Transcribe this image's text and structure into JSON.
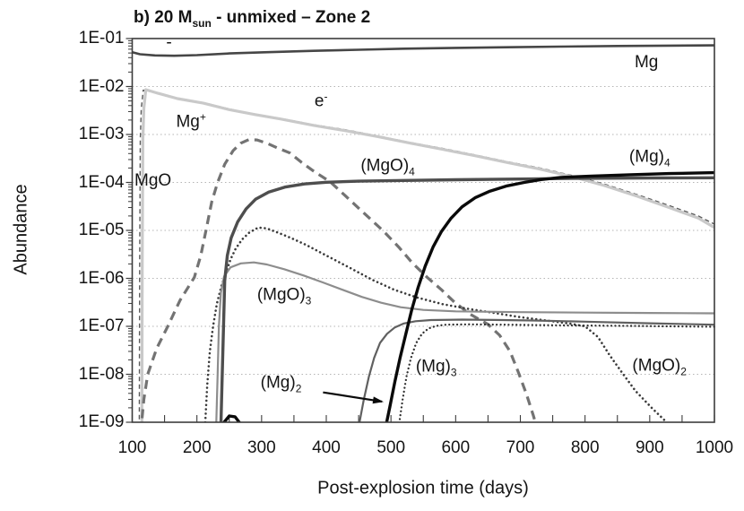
{
  "chart_data": {
    "type": "line",
    "title": "b) 20 Msun - unmixed – Zone 2",
    "title_parts": {
      "prefix": "b) 20 M",
      "subscript": "sun",
      "suffix": "  - unmixed – Zone 2"
    },
    "xlabel": "Post-explosion time (days)",
    "ylabel": "Abundance",
    "grid": "horizontal dotted lines at each decade",
    "legend_position": "inline curve labels",
    "axis_color": "#3c3c3c",
    "grid_color": "#b5b5b5",
    "x_axis": {
      "scale": "linear",
      "min": 100,
      "max": 1000,
      "major_ticks": [
        100,
        200,
        300,
        400,
        500,
        600,
        700,
        800,
        900,
        1000
      ],
      "minor_tick_step": 50
    },
    "y_axis": {
      "scale": "log",
      "min": 1e-09,
      "max": 0.1,
      "tick_labels": [
        "1E-01",
        "1E-02",
        "1E-03",
        "1E-04",
        "1E-05",
        "1E-06",
        "1E-07",
        "1E-08",
        "1E-09"
      ],
      "tick_exponents": [
        -1,
        -2,
        -3,
        -4,
        -5,
        -6,
        -7,
        -8,
        -9
      ]
    },
    "series": [
      {
        "id": "mg_plus",
        "name": "Mg+",
        "color": "#5a5a5a",
        "width": 1.4,
        "dash": "5 3.5",
        "label": {
          "text": "Mg",
          "sup": "+",
          "x": 191,
          "y": 0.0018
        },
        "points": [
          [
            111,
            8e-10
          ],
          [
            111.5,
            2e-06
          ],
          [
            112.5,
            0.0008
          ],
          [
            114,
            0.0035
          ],
          [
            117,
            0.0084
          ],
          [
            140,
            0.0073
          ],
          [
            170,
            0.0057
          ],
          [
            210,
            0.0046
          ],
          [
            250,
            0.0034
          ],
          [
            290,
            0.00265
          ],
          [
            330,
            0.00215
          ],
          [
            380,
            0.0016
          ],
          [
            430,
            0.00125
          ],
          [
            480,
            0.00093
          ],
          [
            530,
            0.00068
          ],
          [
            580,
            0.00051
          ],
          [
            630,
            0.000375
          ],
          [
            680,
            0.00027
          ],
          [
            730,
            0.0002
          ],
          [
            780,
            0.00014
          ],
          [
            830,
            9.2e-05
          ],
          [
            880,
            5.6e-05
          ],
          [
            930,
            3.3e-05
          ],
          [
            975,
            2e-05
          ],
          [
            1000,
            1.35e-05
          ]
        ]
      },
      {
        "id": "electron",
        "name": "e-",
        "color": "#c9c9c9",
        "width": 3.2,
        "dash": null,
        "label": {
          "text": "e",
          "sup": "-",
          "x": 392,
          "y": 0.005
        },
        "points": [
          [
            115,
            8e-10
          ],
          [
            115.5,
            2e-06
          ],
          [
            116.5,
            0.0008
          ],
          [
            118,
            0.0035
          ],
          [
            121,
            0.0086
          ],
          [
            140,
            0.0072
          ],
          [
            170,
            0.0056
          ],
          [
            210,
            0.0045
          ],
          [
            250,
            0.0033
          ],
          [
            290,
            0.0026
          ],
          [
            330,
            0.0021
          ],
          [
            380,
            0.00155
          ],
          [
            430,
            0.0012
          ],
          [
            480,
            0.0009
          ],
          [
            530,
            0.00066
          ],
          [
            580,
            0.00049
          ],
          [
            630,
            0.00036
          ],
          [
            680,
            0.00026
          ],
          [
            730,
            0.00019
          ],
          [
            780,
            0.000132
          ],
          [
            830,
            8.6e-05
          ],
          [
            880,
            5.2e-05
          ],
          [
            930,
            3e-05
          ],
          [
            975,
            1.8e-05
          ],
          [
            1000,
            1.15e-05
          ]
        ]
      },
      {
        "id": "mgo",
        "name": "MgO",
        "color": "#737373",
        "width": 3.2,
        "dash": "10 6.5",
        "label": {
          "text": "MgO",
          "x": 132,
          "y": 0.000105
        },
        "points": [
          [
            113,
            6e-10
          ],
          [
            118,
            3e-09
          ],
          [
            124,
            1e-08
          ],
          [
            138,
            3.5e-08
          ],
          [
            155,
            1e-07
          ],
          [
            174,
            3.5e-07
          ],
          [
            196,
            1.05e-06
          ],
          [
            206,
            3e-06
          ],
          [
            214,
            1e-05
          ],
          [
            223,
            4e-05
          ],
          [
            232,
            0.0001
          ],
          [
            243,
            0.00024
          ],
          [
            256,
            0.00046
          ],
          [
            268,
            0.00066
          ],
          [
            280,
            0.00078
          ],
          [
            293,
            0.00077
          ],
          [
            308,
            0.00066
          ],
          [
            325,
            0.00052
          ],
          [
            344,
            0.00041
          ],
          [
            362,
            0.00026
          ],
          [
            381,
            0.00017
          ],
          [
            406,
            0.000103
          ],
          [
            430,
            5.2e-05
          ],
          [
            458,
            2.3e-05
          ],
          [
            488,
            9.8e-06
          ],
          [
            512,
            4.5e-06
          ],
          [
            533,
            2.1e-06
          ],
          [
            556,
            1.05e-06
          ],
          [
            578,
            5.8e-07
          ],
          [
            598,
            3.2e-07
          ],
          [
            622,
            1.8e-07
          ],
          [
            650,
            1.1e-07
          ],
          [
            668,
            6.5e-08
          ],
          [
            684,
            3e-08
          ],
          [
            697,
            1.1e-08
          ],
          [
            709,
            4e-09
          ],
          [
            720,
            1.4e-09
          ],
          [
            728,
            6e-10
          ]
        ]
      },
      {
        "id": "mgo2",
        "name": "(MgO)2",
        "color": "#3a3a3a",
        "width": 2.6,
        "dash": "0.01 4.8",
        "linecap": "round",
        "label": {
          "text": "(MgO)",
          "sub": "2",
          "x": 915,
          "y": 1.45e-08
        },
        "points": [
          [
            213,
            1e-09
          ],
          [
            216,
            6e-09
          ],
          [
            220,
            3e-08
          ],
          [
            225,
            1e-07
          ],
          [
            231,
            3e-07
          ],
          [
            238,
            7e-07
          ],
          [
            245,
            1.3e-06
          ],
          [
            252,
            2.5e-06
          ],
          [
            260,
            4.2e-06
          ],
          [
            270,
            6.5e-06
          ],
          [
            281,
            9e-06
          ],
          [
            295,
            1.15e-05
          ],
          [
            308,
            1.1e-05
          ],
          [
            325,
            9e-06
          ],
          [
            345,
            7e-06
          ],
          [
            370,
            4.9e-06
          ],
          [
            400,
            3e-06
          ],
          [
            435,
            1.7e-06
          ],
          [
            470,
            9.5e-07
          ],
          [
            505,
            5.8e-07
          ],
          [
            540,
            4e-07
          ],
          [
            580,
            2.9e-07
          ],
          [
            620,
            2.3e-07
          ],
          [
            660,
            1.9e-07
          ],
          [
            700,
            1.55e-07
          ],
          [
            740,
            1.32e-07
          ],
          [
            775,
            1.15e-07
          ],
          [
            800,
            1e-07
          ],
          [
            820,
            6e-08
          ],
          [
            838,
            2.5e-08
          ],
          [
            858,
            1.05e-08
          ],
          [
            878,
            4.5e-09
          ],
          [
            903,
            2e-09
          ],
          [
            923,
            1.1e-09
          ],
          [
            933,
            6e-10
          ]
        ]
      },
      {
        "id": "mgo3",
        "name": "(MgO)3",
        "color": "#8d8d8d",
        "width": 2.2,
        "dash": null,
        "label": {
          "text": "(MgO)",
          "sub": "3",
          "x": 335,
          "y": 4.3e-07
        },
        "points": [
          [
            230,
            1e-09
          ],
          [
            232,
            1e-08
          ],
          [
            234,
            1e-07
          ],
          [
            237,
            5e-07
          ],
          [
            242,
            1.1e-06
          ],
          [
            252,
            1.7e-06
          ],
          [
            268,
            2.05e-06
          ],
          [
            288,
            2.15e-06
          ],
          [
            308,
            1.95e-06
          ],
          [
            335,
            1.55e-06
          ],
          [
            365,
            1.15e-06
          ],
          [
            395,
            8.2e-07
          ],
          [
            425,
            5.8e-07
          ],
          [
            455,
            4.1e-07
          ],
          [
            485,
            3.1e-07
          ],
          [
            515,
            2.5e-07
          ],
          [
            550,
            2.2e-07
          ],
          [
            600,
            2.05e-07
          ],
          [
            700,
            1.97e-07
          ],
          [
            800,
            1.93e-07
          ],
          [
            900,
            1.9e-07
          ],
          [
            1000,
            1.87e-07
          ]
        ]
      },
      {
        "id": "mgo4",
        "name": "(MgO)4",
        "color": "#4e4e4e",
        "width": 3.4,
        "dash": null,
        "label": {
          "text": "(MgO)",
          "sub": "4",
          "x": 495,
          "y": 0.00021
        },
        "points": [
          [
            237,
            8e-10
          ],
          [
            239,
            8e-09
          ],
          [
            241,
            9e-08
          ],
          [
            243,
            9e-07
          ],
          [
            247,
            3e-06
          ],
          [
            253,
            7e-06
          ],
          [
            263,
            1.5e-05
          ],
          [
            276,
            2.8e-05
          ],
          [
            291,
            4.5e-05
          ],
          [
            311,
            6.3e-05
          ],
          [
            336,
            8e-05
          ],
          [
            366,
            9.3e-05
          ],
          [
            400,
            0.000101
          ],
          [
            450,
            0.000106
          ],
          [
            520,
            0.00011
          ],
          [
            600,
            0.000114
          ],
          [
            700,
            0.000118
          ],
          [
            800,
            0.000122
          ],
          [
            900,
            0.000124
          ],
          [
            1000,
            0.000125
          ]
        ]
      },
      {
        "id": "mg2",
        "name": "(Mg)2",
        "color": "#606060",
        "width": 2.2,
        "dash": null,
        "label": {
          "text": "(Mg)",
          "sub": "2",
          "x": 330,
          "y": 6.5e-09
        },
        "points": [
          [
            450,
            8e-10
          ],
          [
            458,
            3e-09
          ],
          [
            466,
            9e-09
          ],
          [
            474,
            2.2e-08
          ],
          [
            483,
            4.5e-08
          ],
          [
            494,
            7e-08
          ],
          [
            506,
            9.5e-08
          ],
          [
            520,
            1.15e-07
          ],
          [
            538,
            1.28e-07
          ],
          [
            562,
            1.35e-07
          ],
          [
            610,
            1.38e-07
          ],
          [
            660,
            1.36e-07
          ],
          [
            720,
            1.32e-07
          ],
          [
            800,
            1.25e-07
          ],
          [
            900,
            1.16e-07
          ],
          [
            1000,
            1.08e-07
          ]
        ]
      },
      {
        "id": "mg3",
        "name": "(Mg)3",
        "color": "#2e2e2e",
        "width": 2.3,
        "dash": "0.01 4.4",
        "linecap": "round",
        "label": {
          "text": "(Mg)",
          "sub": "3",
          "x": 570,
          "y": 1.4e-08
        },
        "points": [
          [
            512,
            8e-10
          ],
          [
            518,
            3e-09
          ],
          [
            524,
            9e-09
          ],
          [
            531,
            2.2e-08
          ],
          [
            539,
            4.5e-08
          ],
          [
            548,
            7e-08
          ],
          [
            558,
            9e-08
          ],
          [
            570,
            1.02e-07
          ],
          [
            585,
            1.08e-07
          ],
          [
            620,
            1.1e-07
          ],
          [
            680,
            1.08e-07
          ],
          [
            760,
            1.05e-07
          ],
          [
            860,
            1.02e-07
          ],
          [
            1000,
            9.8e-08
          ]
        ]
      },
      {
        "id": "mg4",
        "name": "(Mg)4",
        "color": "#0a0a0a",
        "width": 3.4,
        "dash": null,
        "label": {
          "text": "(Mg)",
          "sub": "4",
          "x": 900,
          "y": 0.00033
        },
        "points": [
          [
            235,
            4e-10
          ],
          [
            242,
            1e-09
          ],
          [
            250,
            1.35e-09
          ],
          [
            259,
            1.3e-09
          ],
          [
            268,
            9e-10
          ],
          [
            275,
            4e-10
          ],
          [
            290,
            1.5e-10
          ],
          [
            478,
            1.5e-10
          ],
          [
            490,
            6e-10
          ],
          [
            498,
            2e-09
          ],
          [
            506,
            7e-09
          ],
          [
            514,
            2.2e-08
          ],
          [
            523,
            7e-08
          ],
          [
            532,
            2.2e-07
          ],
          [
            542,
            6.5e-07
          ],
          [
            553,
            1.8e-06
          ],
          [
            565,
            4.5e-06
          ],
          [
            578,
            9.5e-06
          ],
          [
            593,
            1.8e-05
          ],
          [
            610,
            3.1e-05
          ],
          [
            630,
            4.8e-05
          ],
          [
            653,
            6.6e-05
          ],
          [
            678,
            8.4e-05
          ],
          [
            706,
            0.0001
          ],
          [
            732,
            0.000115
          ],
          [
            762,
            0.000127
          ],
          [
            810,
            0.000136
          ],
          [
            870,
            0.000145
          ],
          [
            930,
            0.000153
          ],
          [
            1000,
            0.00016
          ]
        ]
      },
      {
        "id": "mg",
        "name": "Mg",
        "color": "#464646",
        "width": 2.6,
        "dash": null,
        "label": {
          "text": "Mg",
          "x": 895,
          "y": 0.031
        },
        "points": [
          [
            100,
            0.052
          ],
          [
            112,
            0.047
          ],
          [
            135,
            0.0445
          ],
          [
            165,
            0.0438
          ],
          [
            200,
            0.0452
          ],
          [
            250,
            0.049
          ],
          [
            310,
            0.052
          ],
          [
            380,
            0.0555
          ],
          [
            450,
            0.0585
          ],
          [
            520,
            0.0615
          ],
          [
            600,
            0.064
          ],
          [
            680,
            0.066
          ],
          [
            760,
            0.068
          ],
          [
            850,
            0.07
          ],
          [
            930,
            0.0712
          ],
          [
            1000,
            0.072
          ]
        ]
      }
    ],
    "annotations": [
      {
        "type": "arrow",
        "series": "mg2",
        "from": [
          395,
          4.2e-09
        ],
        "to": [
          486,
          2.7e-09
        ],
        "color": "#0a0a0a"
      },
      {
        "type": "text",
        "text": "-",
        "x": 157,
        "y": 0.08
      }
    ]
  }
}
